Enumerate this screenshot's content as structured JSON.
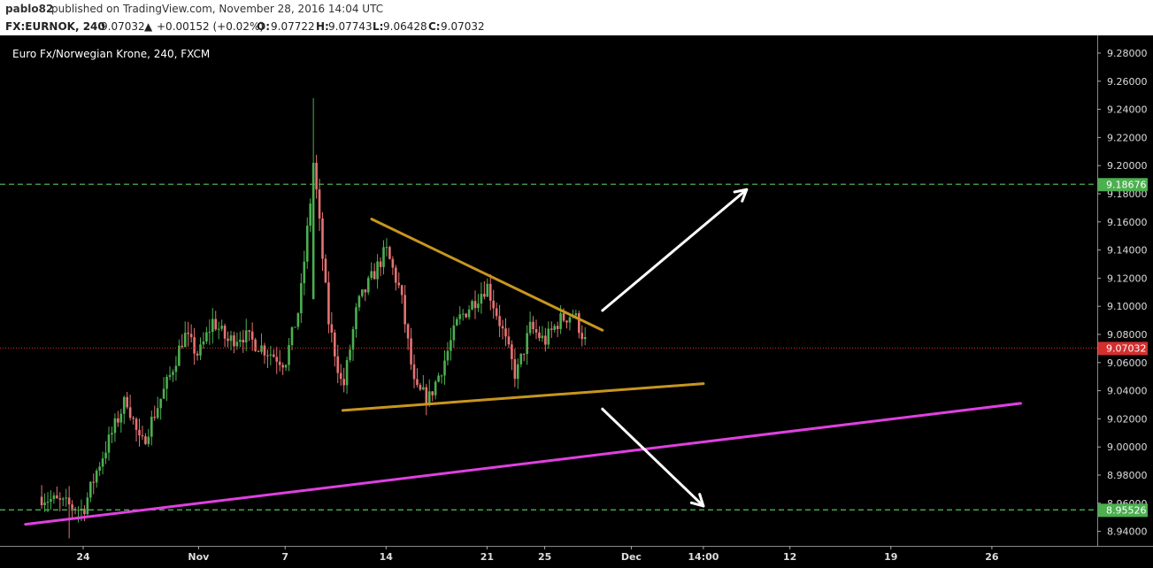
{
  "header": {
    "author": "pablo82",
    "published": "published on TradingView.com, November 28, 2016 14:04 UTC",
    "symbol": "FX:EURNOK, 240",
    "last": "9.07032",
    "change": "+0.00152 (+0.02%)",
    "o_label": "O:",
    "o_value": "9.07722",
    "h_label": "H:",
    "h_value": "9.07743",
    "l_label": "L:",
    "l_value": "9.06428",
    "c_label": "C:",
    "c_value": "9.07032"
  },
  "colors": {
    "background": "#000000",
    "up_candle": "#4caf50",
    "down_candle": "#e57373",
    "triangle_lines": "#c8961e",
    "support_trendline": "#e040e0",
    "horizontal_levels": "#4caf50",
    "arrows": "#ffffff",
    "last_price_badge": "#d32f2f",
    "level_badge": "#4caf50"
  },
  "chart_data": {
    "type": "candlestick",
    "title": "Euro Fx/Norwegian Krone, 240, FXCM",
    "xlabel": "",
    "ylabel": "",
    "ylim": [
      8.93,
      9.29
    ],
    "y_ticks": [
      "9.28000",
      "9.26000",
      "9.24000",
      "9.22000",
      "9.20000",
      "9.18000",
      "9.16000",
      "9.14000",
      "9.12000",
      "9.10000",
      "9.08000",
      "9.06000",
      "9.04000",
      "9.02000",
      "9.00000",
      "8.98000",
      "8.96000",
      "8.94000"
    ],
    "x_tick_labels": [
      {
        "label": "24",
        "x": "Oct 24"
      },
      {
        "label": "Nov",
        "x": "Nov 1"
      },
      {
        "label": "7",
        "x": "Nov 7"
      },
      {
        "label": "14",
        "x": "Nov 14"
      },
      {
        "label": "21",
        "x": "Nov 21"
      },
      {
        "label": "25",
        "x": "Nov 25"
      },
      {
        "label": "Dec",
        "x": "Dec 1"
      },
      {
        "label": "14:00",
        "x": "Dec 6"
      },
      {
        "label": "12",
        "x": "Dec 12"
      },
      {
        "label": "19",
        "x": "Dec 19"
      },
      {
        "label": "26",
        "x": "Dec 26"
      }
    ],
    "last_price": "9.07032",
    "horizontal_levels": [
      "9.18676",
      "8.95526"
    ],
    "price_path": [
      [
        "Oct 21",
        8.965
      ],
      [
        "Oct 24",
        8.955
      ],
      [
        "Oct 25",
        8.985
      ],
      [
        "Oct 26",
        9.01
      ],
      [
        "Oct 27",
        9.035
      ],
      [
        "Oct 28",
        9.0
      ],
      [
        "Oct 30",
        9.05
      ],
      [
        "Oct 31",
        9.08
      ],
      [
        "Nov 1",
        9.065
      ],
      [
        "Nov 2",
        9.09
      ],
      [
        "Nov 3",
        9.075
      ],
      [
        "Nov 4",
        9.08
      ],
      [
        "Nov 7",
        9.06
      ],
      [
        "Nov 8",
        9.1
      ],
      [
        "Nov 9",
        9.2
      ],
      [
        "Nov 10",
        9.09
      ],
      [
        "Nov 11",
        9.04
      ],
      [
        "Nov 12",
        9.1
      ],
      [
        "Nov 13",
        9.12
      ],
      [
        "Nov 14",
        9.14
      ],
      [
        "Nov 15",
        9.11
      ],
      [
        "Nov 16",
        9.04
      ],
      [
        "Nov 17",
        9.035
      ],
      [
        "Nov 18",
        9.06
      ],
      [
        "Nov 19",
        9.09
      ],
      [
        "Nov 21",
        9.115
      ],
      [
        "Nov 22",
        9.085
      ],
      [
        "Nov 23",
        9.05
      ],
      [
        "Nov 24",
        9.085
      ],
      [
        "Nov 25",
        9.075
      ],
      [
        "Nov 26",
        9.09
      ],
      [
        "Nov 27",
        9.095
      ],
      [
        "Nov 28",
        9.07
      ]
    ],
    "key_extremes": {
      "high": [
        "Nov 9",
        9.248
      ],
      "low": [
        "Oct 23",
        8.935
      ]
    },
    "annotations": [
      {
        "name": "upper-triangle-line",
        "from": [
          "Nov 13",
          9.162
        ],
        "to": [
          "Nov 29",
          9.083
        ]
      },
      {
        "name": "lower-triangle-line",
        "from": [
          "Nov 11",
          9.026
        ],
        "to": [
          "Dec 6",
          9.045
        ]
      },
      {
        "name": "support-trendline",
        "from": [
          "Oct 20",
          8.945
        ],
        "to": [
          "Dec 28",
          9.031
        ]
      },
      {
        "name": "breakout-arrow-up",
        "from": [
          "Nov 29",
          9.097
        ],
        "to": [
          "Dec 9",
          9.183
        ]
      },
      {
        "name": "breakdown-arrow-down",
        "from": [
          "Nov 29",
          9.027
        ],
        "to": [
          "Dec 6",
          8.958
        ]
      }
    ]
  }
}
